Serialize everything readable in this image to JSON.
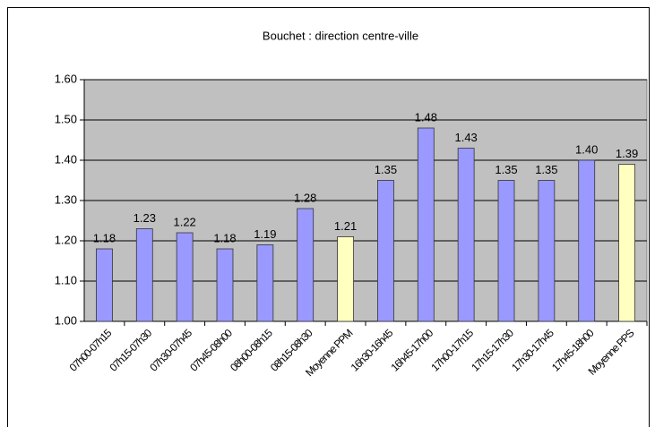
{
  "chart_data": {
    "type": "bar",
    "title": "Bouchet : direction centre-ville",
    "categories": [
      "07h00-07h15",
      "07h15-07h30",
      "07h30-07h45",
      "07h45-08h00",
      "08h00-08h15",
      "08h15-08h30",
      "Moyenne PPM",
      "16h30-16h45",
      "16h45-17h00",
      "17h00-17h15",
      "17h15-17h30",
      "17h30-17h45",
      "17h45-18h00",
      "Moyenne PPS"
    ],
    "values": [
      1.18,
      1.23,
      1.22,
      1.18,
      1.19,
      1.28,
      1.21,
      1.35,
      1.48,
      1.43,
      1.35,
      1.35,
      1.4,
      1.39
    ],
    "value_labels": [
      "1.18",
      "1.23",
      "1.22",
      "1.18",
      "1.19",
      "1.28",
      "1.21",
      "1.35",
      "1.48",
      "1.43",
      "1.35",
      "1.35",
      "1.40",
      "1.39"
    ],
    "colors": [
      "#9999ff",
      "#9999ff",
      "#9999ff",
      "#9999ff",
      "#9999ff",
      "#9999ff",
      "#ffffc0",
      "#9999ff",
      "#9999ff",
      "#9999ff",
      "#9999ff",
      "#9999ff",
      "#9999ff",
      "#ffffc0"
    ],
    "ylim": [
      1.0,
      1.6
    ],
    "yticks": [
      {
        "value": 1.0,
        "label": "1.00"
      },
      {
        "value": 1.1,
        "label": "1.10"
      },
      {
        "value": 1.2,
        "label": "1.20"
      },
      {
        "value": 1.3,
        "label": "1.30"
      },
      {
        "value": 1.4,
        "label": "1.40"
      },
      {
        "value": 1.5,
        "label": "1.50"
      },
      {
        "value": 1.6,
        "label": "1.60"
      }
    ],
    "grid": true,
    "plot_background": "#c0c0c0"
  }
}
